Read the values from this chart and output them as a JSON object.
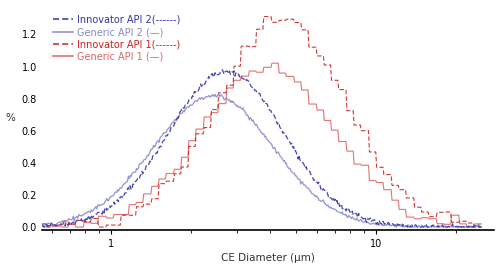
{
  "xlabel": "CE Diameter (μm)",
  "ylabel": "%",
  "xlim": [
    0.55,
    28
  ],
  "ylim": [
    -0.02,
    1.38
  ],
  "yticks": [
    0.0,
    0.2,
    0.4,
    0.6,
    0.8,
    1.0,
    1.2
  ],
  "background_color": "#ffffff",
  "legend": [
    {
      "label": "Innovator API 2(------)",
      "color": "#4444bb",
      "linestyle": "--"
    },
    {
      "label": "Generic API 2 (—)",
      "color": "#6666cc",
      "linestyle": "-"
    },
    {
      "label": "Innovator API 1(------)",
      "color": "#cc2222",
      "linestyle": "--"
    },
    {
      "label": "Generic API 1 (—)",
      "color": "#dd6666",
      "linestyle": "-"
    }
  ]
}
